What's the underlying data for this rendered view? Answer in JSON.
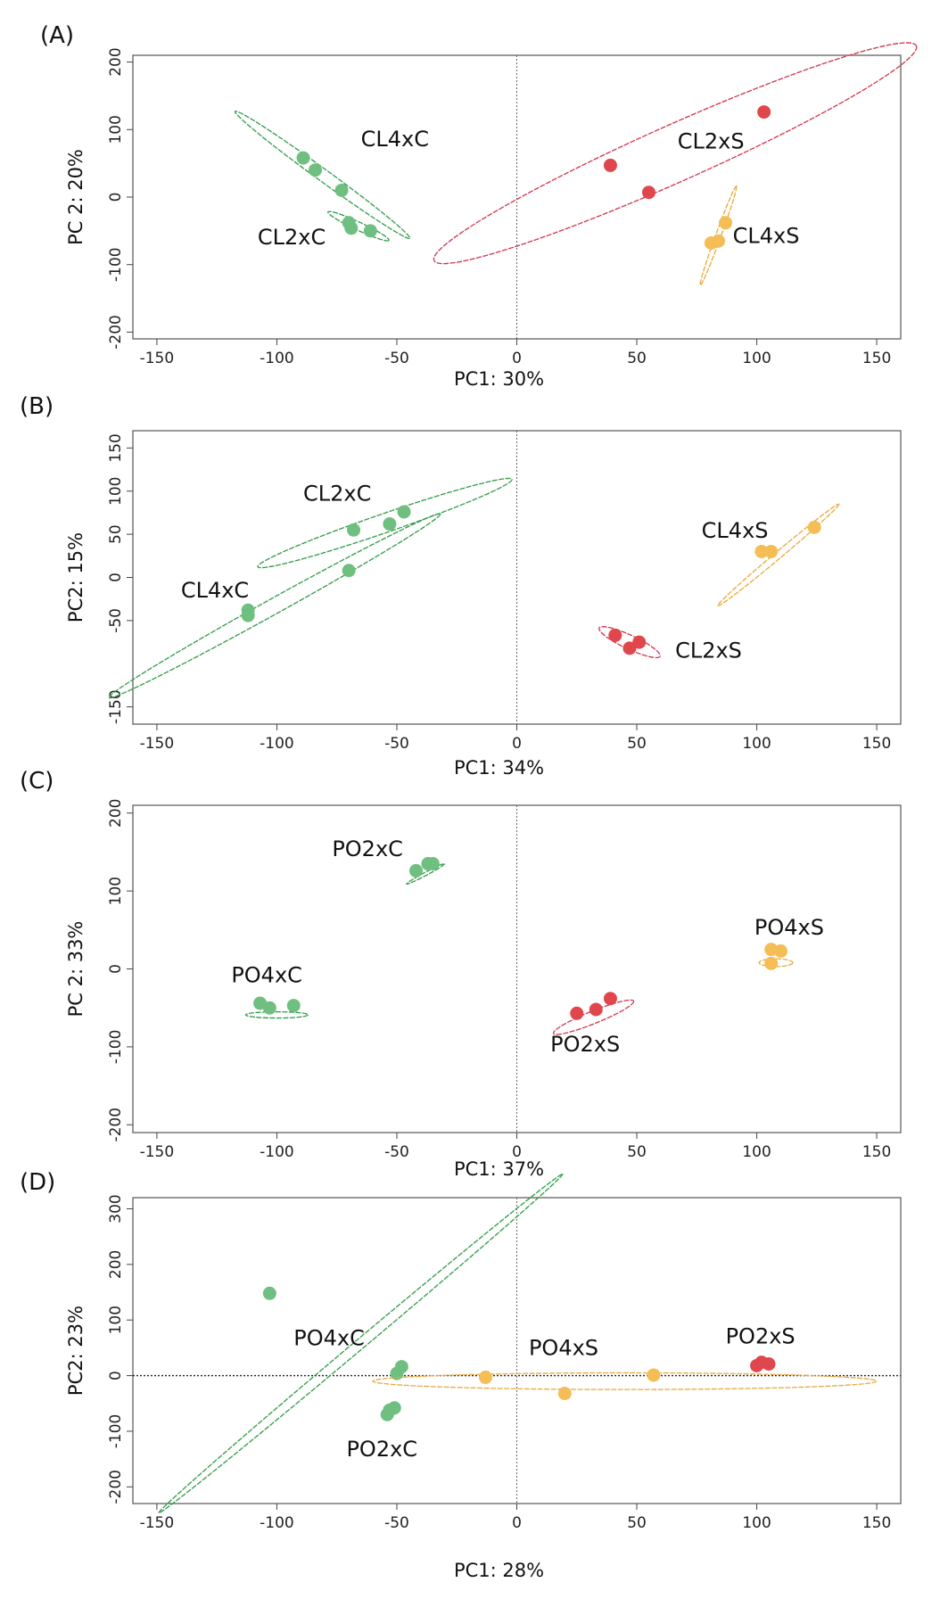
{
  "figure": {
    "colors": {
      "green": "#6fbf80",
      "green_ellipse": "#2f9b46",
      "red": "#e0474c",
      "red_ellipse": "#d1344a",
      "orange": "#f5bd55",
      "orange_ellipse": "#e8a93b"
    }
  },
  "chart_data": [
    {
      "type": "scatter",
      "panel": "(A)",
      "xlabel": "PC1: 30%",
      "ylabel": "PC 2: 20%",
      "xlim": [
        -160,
        160
      ],
      "ylim": [
        -210,
        210
      ],
      "xticks": [
        -150,
        -100,
        -50,
        0,
        50,
        100,
        150
      ],
      "yticks": [
        -200,
        -100,
        0,
        100,
        200
      ],
      "zero_line": "vertical",
      "groups": [
        {
          "name": "CL4xC",
          "color": "green",
          "points": [
            [
              -89,
              58
            ],
            [
              -84,
              40
            ],
            [
              -73,
              10
            ]
          ],
          "ellipse": {
            "cx": -81,
            "cy": 33,
            "rx": 45,
            "ry": 9,
            "angle": -36
          },
          "label_at": [
            -65,
            75
          ]
        },
        {
          "name": "CL2xC",
          "color": "green",
          "points": [
            [
              -70,
              -38
            ],
            [
              -69,
              -46
            ],
            [
              -61,
              -50
            ]
          ],
          "ellipse": {
            "cx": -66,
            "cy": -43,
            "rx": 14,
            "ry": 6,
            "angle": -25
          },
          "label_at": [
            -108,
            -70
          ]
        },
        {
          "name": "CL2xS",
          "color": "red",
          "points": [
            [
              39,
              47
            ],
            [
              55,
              7
            ],
            [
              103,
              126
            ]
          ],
          "ellipse": {
            "cx": 66,
            "cy": 65,
            "rx": 110,
            "ry": 42,
            "angle": 24
          },
          "label_at": [
            67,
            72
          ]
        },
        {
          "name": "CL4xS",
          "color": "orange",
          "points": [
            [
              81,
              -68
            ],
            [
              84,
              -65
            ],
            [
              87,
              -38
            ]
          ],
          "ellipse": {
            "cx": 84,
            "cy": -57,
            "rx": 22,
            "ry": 4,
            "angle": 70
          },
          "label_at": [
            90,
            -68
          ]
        }
      ]
    },
    {
      "type": "scatter",
      "panel": "(B)",
      "xlabel": "PC1: 34%",
      "ylabel": "PC2: 15%",
      "xlim": [
        -160,
        160
      ],
      "ylim": [
        -170,
        170
      ],
      "xticks": [
        -150,
        -100,
        -50,
        0,
        50,
        100,
        150
      ],
      "yticks": [
        -150,
        -50,
        0,
        50,
        100,
        150
      ],
      "zero_line": "vertical",
      "groups": [
        {
          "name": "CL2xC",
          "color": "green",
          "points": [
            [
              -68,
              55
            ],
            [
              -53,
              62
            ],
            [
              -47,
              76
            ]
          ],
          "ellipse": {
            "cx": -55,
            "cy": 63,
            "rx": 56,
            "ry": 11,
            "angle": 19
          },
          "label_at": [
            -89,
            89
          ]
        },
        {
          "name": "CL4xC",
          "color": "green",
          "points": [
            [
              -112,
              -38
            ],
            [
              -112,
              -44
            ],
            [
              -70,
              8
            ]
          ],
          "ellipse": {
            "cx": -101,
            "cy": -33,
            "rx": 79,
            "ry": 9,
            "angle": 29
          },
          "label_at": [
            -140,
            -23
          ]
        },
        {
          "name": "CL4xS",
          "color": "orange",
          "points": [
            [
              102,
              30
            ],
            [
              106,
              30
            ],
            [
              124,
              58
            ]
          ],
          "ellipse": {
            "cx": 109,
            "cy": 26,
            "rx": 33,
            "ry": 4,
            "angle": 40
          },
          "label_at": [
            77,
            46
          ]
        },
        {
          "name": "CL2xS",
          "color": "red",
          "points": [
            [
              41,
              -67
            ],
            [
              47,
              -82
            ],
            [
              51,
              -75
            ]
          ],
          "ellipse": {
            "cx": 47,
            "cy": -75,
            "rx": 14,
            "ry": 8,
            "angle": -25
          },
          "label_at": [
            66,
            -93
          ]
        }
      ]
    },
    {
      "type": "scatter",
      "panel": "(C)",
      "xlabel": "PC1: 37%",
      "ylabel": "PC 2: 33%",
      "xlim": [
        -160,
        160
      ],
      "ylim": [
        -210,
        210
      ],
      "xticks": [
        -150,
        -100,
        -50,
        0,
        50,
        100,
        150
      ],
      "yticks": [
        -200,
        -100,
        0,
        100,
        200
      ],
      "zero_line": "vertical",
      "groups": [
        {
          "name": "PO2xC",
          "color": "green",
          "points": [
            [
              -42,
              126
            ],
            [
              -37,
              135
            ],
            [
              -35,
              135
            ]
          ],
          "ellipse": {
            "cx": -38,
            "cy": 122,
            "rx": 9,
            "ry": 2,
            "angle": 28
          },
          "label_at": [
            -77,
            145
          ]
        },
        {
          "name": "PO4xC",
          "color": "green",
          "points": [
            [
              -107,
              -44
            ],
            [
              -103,
              -50
            ],
            [
              -93,
              -47
            ]
          ],
          "ellipse": {
            "cx": -100,
            "cy": -59,
            "rx": 13,
            "ry": 4,
            "angle": 0
          },
          "label_at": [
            -119,
            -17
          ]
        },
        {
          "name": "PO2xS",
          "color": "red",
          "points": [
            [
              25,
              -57
            ],
            [
              33,
              -52
            ],
            [
              39,
              -38
            ]
          ],
          "ellipse": {
            "cx": 32,
            "cy": -62,
            "rx": 18,
            "ry": 8,
            "angle": 22
          },
          "label_at": [
            14,
            -106
          ]
        },
        {
          "name": "PO4xS",
          "color": "orange",
          "points": [
            [
              106,
              25
            ],
            [
              110,
              23
            ],
            [
              106,
              7
            ]
          ],
          "ellipse": {
            "cx": 108,
            "cy": 8,
            "rx": 7,
            "ry": 5,
            "angle": 0
          },
          "label_at": [
            99,
            44
          ]
        }
      ]
    },
    {
      "type": "scatter",
      "panel": "(D)",
      "xlabel": "PC1: 28%",
      "ylabel": "PC2: 23%",
      "xlim": [
        -160,
        160
      ],
      "ylim": [
        -230,
        320
      ],
      "xticks": [
        -150,
        -100,
        -50,
        0,
        50,
        100,
        150
      ],
      "yticks": [
        -200,
        -100,
        0,
        100,
        200,
        300
      ],
      "zero_line": "both",
      "groups": [
        {
          "name": "PO4xC",
          "color": "green",
          "points": [
            [
              -103,
              148
            ],
            [
              -50,
              4
            ],
            [
              -48,
              16
            ]
          ],
          "ellipse": {
            "cx": -65,
            "cy": 58,
            "rx": 110,
            "ry": 9,
            "angle": 40
          },
          "label_at": [
            -93,
            55
          ]
        },
        {
          "name": "PO2xC",
          "color": "green",
          "points": [
            [
              -54,
              -70
            ],
            [
              -53,
              -62
            ],
            [
              -51,
              -58
            ]
          ],
          "ellipse": null,
          "label_at": [
            -71,
            -145
          ]
        },
        {
          "name": "PO4xS",
          "color": "orange",
          "points": [
            [
              -13,
              -3
            ],
            [
              20,
              -32
            ],
            [
              57,
              1
            ]
          ],
          "ellipse": {
            "cx": 45,
            "cy": -10,
            "rx": 105,
            "ry": 15,
            "angle": 0
          },
          "label_at": [
            5,
            37
          ]
        },
        {
          "name": "PO2xS",
          "color": "red",
          "points": [
            [
              100,
              18
            ],
            [
              102,
              24
            ],
            [
              105,
              21
            ]
          ],
          "ellipse": null,
          "label_at": [
            87,
            58
          ]
        }
      ]
    }
  ]
}
